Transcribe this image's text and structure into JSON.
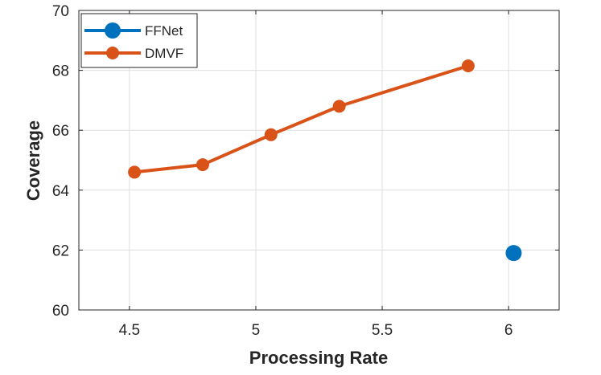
{
  "chart_data": {
    "type": "line",
    "title": "",
    "xlabel": "Processing Rate",
    "ylabel": "Coverage",
    "xlim": [
      4.3,
      6.2
    ],
    "ylim": [
      60,
      70
    ],
    "xticks": [
      4.5,
      5,
      5.5,
      6
    ],
    "xtick_labels": [
      "4.5",
      "5",
      "5.5",
      "6"
    ],
    "yticks": [
      60,
      62,
      64,
      66,
      68,
      70
    ],
    "ytick_labels": [
      "60",
      "62",
      "64",
      "66",
      "68",
      "70"
    ],
    "grid": true,
    "legend_position": "top-left",
    "series": [
      {
        "name": "FFNet",
        "color": "#0072BD",
        "x": [
          6.02
        ],
        "y": [
          61.9
        ]
      },
      {
        "name": "DMVF",
        "color": "#D95319",
        "x": [
          4.52,
          4.79,
          5.06,
          5.33,
          5.84
        ],
        "y": [
          64.6,
          64.85,
          65.85,
          66.8,
          68.15
        ]
      }
    ]
  }
}
